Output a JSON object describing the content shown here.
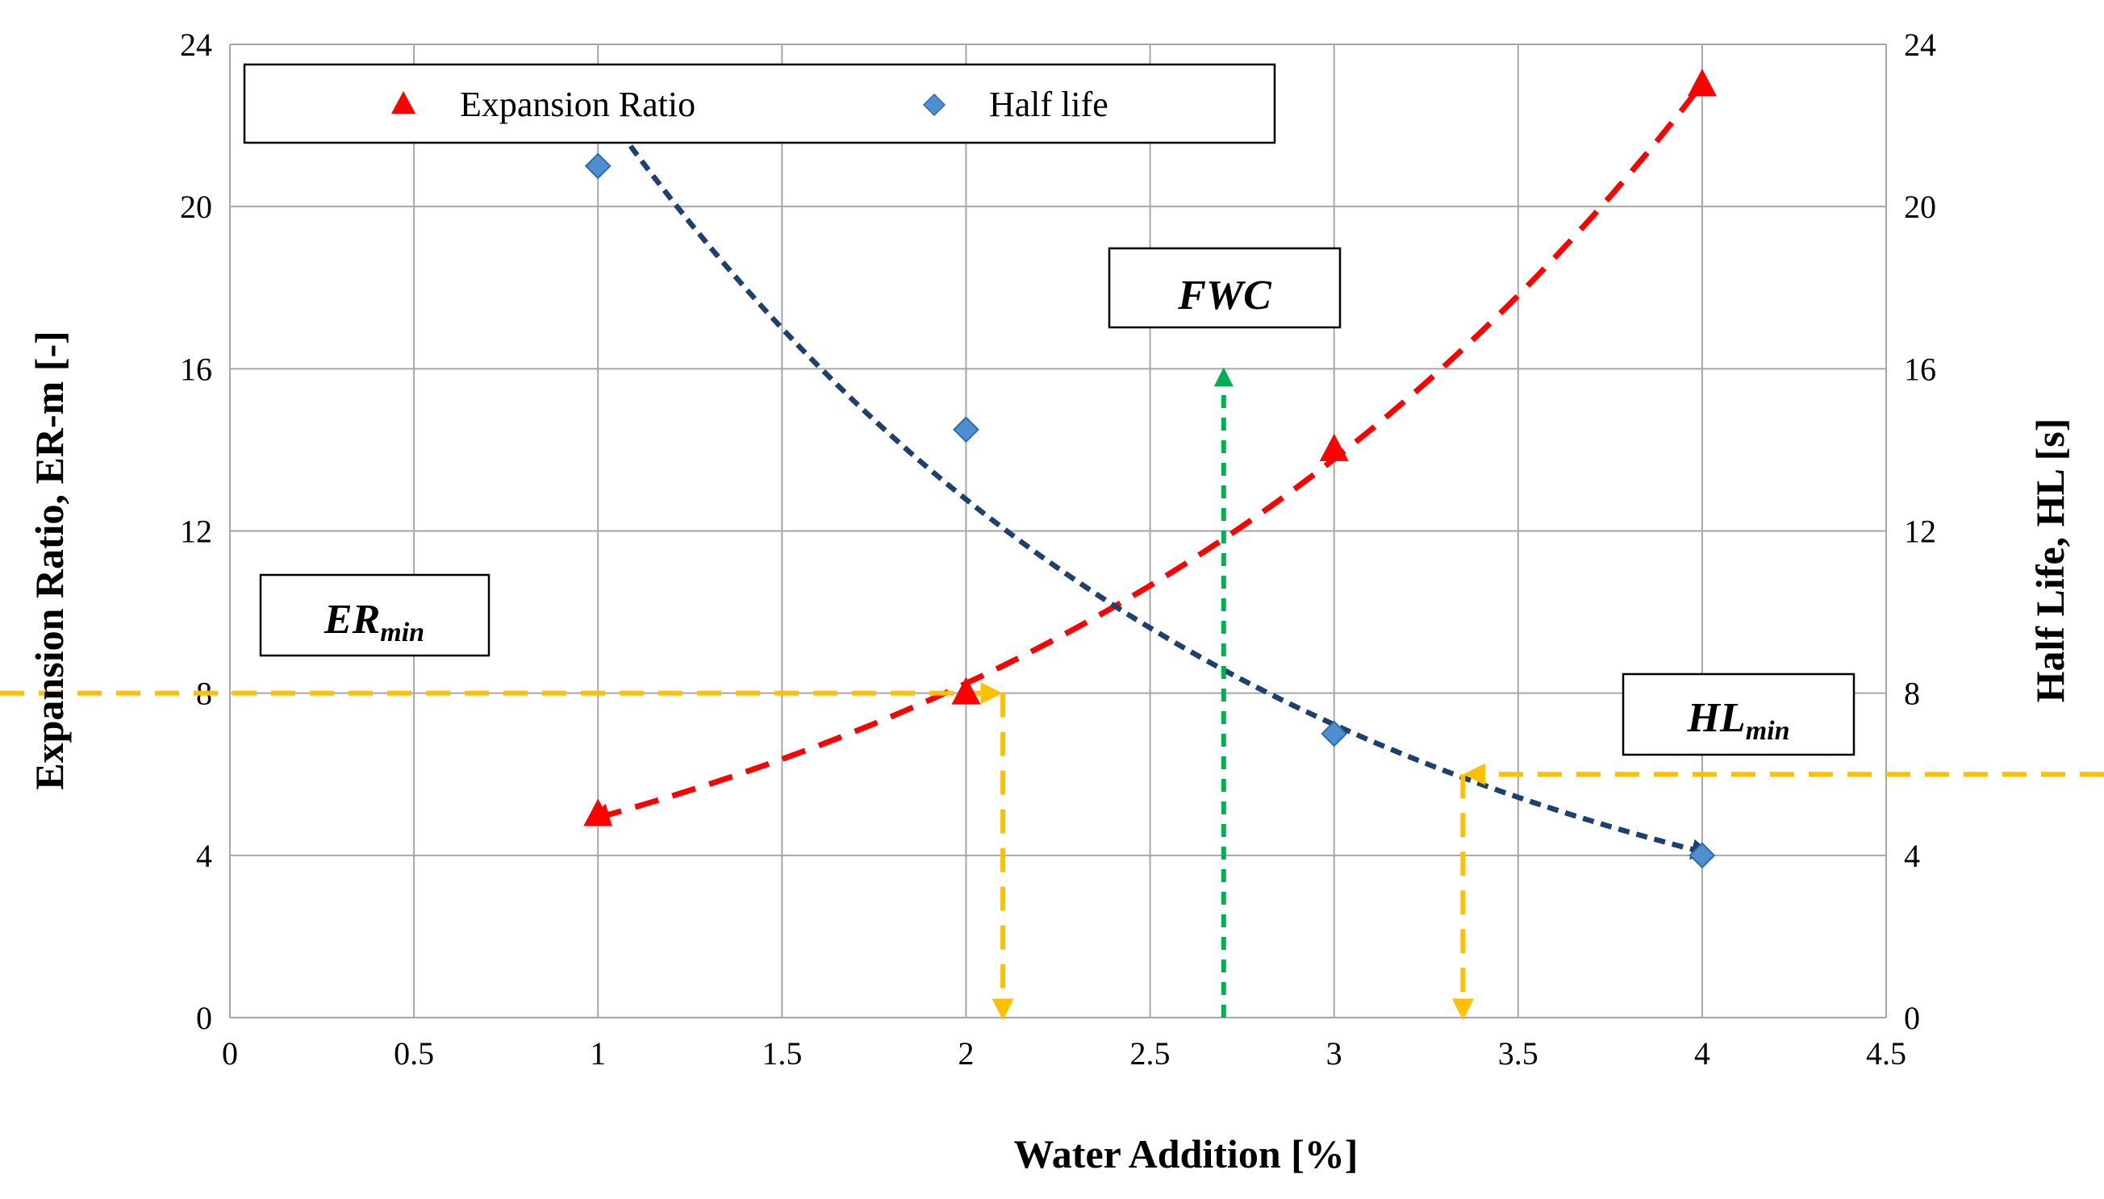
{
  "chart_data": {
    "type": "scatter",
    "xlabel": "Water Addition [%]",
    "ylabel_left": "Expansion Ratio, ER-m [-]",
    "ylabel_right": "Half Life, HL [s]",
    "xlim": [
      0,
      4.5
    ],
    "ylim_left": [
      0,
      24
    ],
    "ylim_right": [
      0,
      24
    ],
    "x_ticks": [
      "0",
      "0.5",
      "1",
      "1.5",
      "2",
      "2.5",
      "3",
      "3.5",
      "4",
      "4.5"
    ],
    "y_ticks_left": [
      "0",
      "4",
      "8",
      "12",
      "16",
      "20",
      "24"
    ],
    "y_ticks_right": [
      "0",
      "4",
      "8",
      "12",
      "16",
      "20",
      "24"
    ],
    "grid": true,
    "legend_placement": "top-left",
    "series": [
      {
        "name": "Expansion Ratio",
        "marker": "triangle",
        "color": "#ff0000",
        "points": [
          [
            1,
            5
          ],
          [
            2,
            8
          ],
          [
            3,
            14
          ],
          [
            4,
            23
          ]
        ],
        "trendline": "exponential",
        "trend_color": "#ff0000"
      },
      {
        "name": "Half life",
        "marker": "diamond",
        "color": "#4f8fd0",
        "points": [
          [
            1,
            21
          ],
          [
            2,
            14.5
          ],
          [
            3,
            7
          ],
          [
            4,
            4
          ]
        ],
        "trendline": "exponential",
        "trend_color": "#1f3f6f"
      }
    ],
    "annotations": [
      {
        "id": "fwc",
        "label": "FWC",
        "sub": "",
        "x": 2.7,
        "y": 16,
        "color": "#00b050"
      },
      {
        "id": "ermin",
        "label": "ER",
        "sub": "min",
        "y": 8,
        "x_cross": 2.1,
        "color": "#ffc000"
      },
      {
        "id": "hlmin",
        "label": "HL",
        "sub": "min",
        "y": 6,
        "x_cross": 3.35,
        "color": "#ffc000"
      }
    ]
  }
}
